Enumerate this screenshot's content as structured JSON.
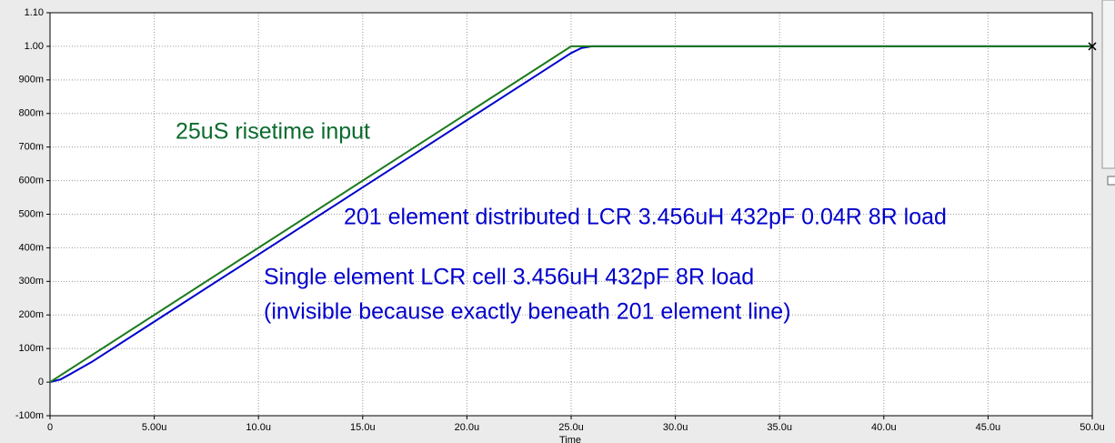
{
  "chart_data": {
    "type": "line",
    "x_label": "Time",
    "xlim": [
      0,
      5e-05
    ],
    "ylim": [
      -0.1,
      1.1
    ],
    "xticks": [
      0,
      {
        "value": 5e-06,
        "label": "5.00u"
      },
      {
        "value": 1e-05,
        "label": "10.0u"
      },
      {
        "value": 1.5e-05,
        "label": "15.0u"
      },
      {
        "value": 2e-05,
        "label": "20.0u"
      },
      {
        "value": 2.5e-05,
        "label": "25.0u"
      },
      {
        "value": 3e-05,
        "label": "30.0u"
      },
      {
        "value": 3.5e-05,
        "label": "35.0u"
      },
      {
        "value": 4e-05,
        "label": "40.0u"
      },
      {
        "value": 4.5e-05,
        "label": "45.0u"
      },
      {
        "value": 5e-05,
        "label": "50.0u"
      }
    ],
    "yticks": [
      {
        "value": -0.1,
        "label": "-100m"
      },
      0,
      {
        "value": 0.1,
        "label": "100m"
      },
      {
        "value": 0.2,
        "label": "200m"
      },
      {
        "value": 0.3,
        "label": "300m"
      },
      {
        "value": 0.4,
        "label": "400m"
      },
      {
        "value": 0.5,
        "label": "500m"
      },
      {
        "value": 0.6,
        "label": "600m"
      },
      {
        "value": 0.7,
        "label": "700m"
      },
      {
        "value": 0.8,
        "label": "800m"
      },
      {
        "value": 0.9,
        "label": "900m"
      },
      {
        "value": 1,
        "label": "1.00"
      },
      {
        "value": 1.1,
        "label": "1.10"
      }
    ],
    "grid": true,
    "series": [
      {
        "color": "#0000cc",
        "x": [
          0,
          5e-07,
          1e-06,
          2e-06,
          5e-06,
          1e-05,
          1.5e-05,
          2e-05,
          2.4e-05,
          2.5e-05,
          2.55e-05,
          2.6e-05,
          5e-05
        ],
        "values": [
          0,
          0.008,
          0.025,
          0.06,
          0.18,
          0.38,
          0.58,
          0.78,
          0.94,
          0.98,
          0.995,
          1,
          1
        ]
      },
      {
        "color": "#1a7a1a",
        "x": [
          0,
          2.5e-05,
          5e-05
        ],
        "values": [
          0,
          1,
          1
        ]
      }
    ],
    "annotations": [
      {
        "text": "25uS risetime input",
        "color": "#0b6b2e"
      },
      {
        "text": "201 element distributed LCR 3.456uH 432pF 0.04R  8R load",
        "color": "#0000cc"
      },
      {
        "text": "Single element LCR cell 3.456uH 432pF  8R load",
        "color": "#0000cc"
      },
      {
        "text": "(invisible because exactly beneath 201 element line)",
        "color": "#0000cc"
      }
    ]
  }
}
